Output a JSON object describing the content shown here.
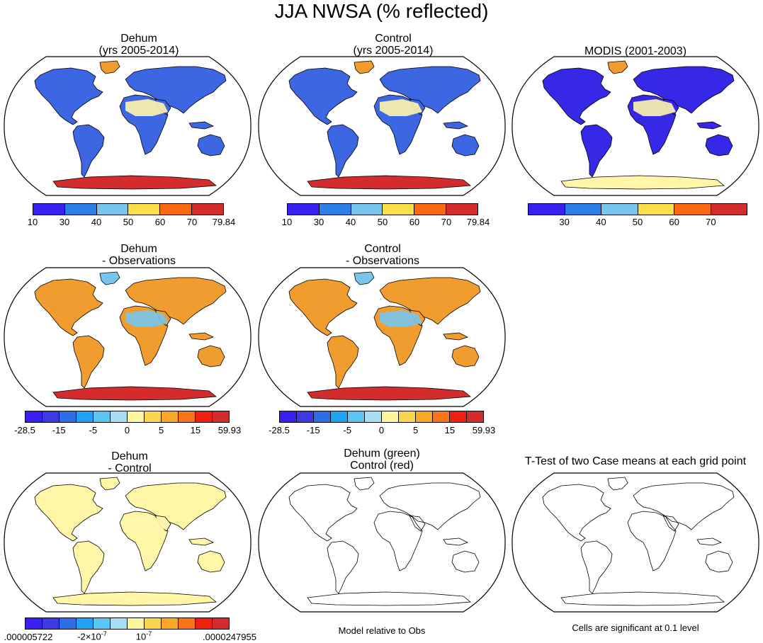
{
  "figure": {
    "title": "JJA NWSA (% reflected)"
  },
  "colors": {
    "abs_scale": [
      "#3a20ee",
      "#2d7ee6",
      "#78c6ee",
      "#f9e04a",
      "#fb6a12",
      "#d42c2c"
    ],
    "diff_scale": [
      "#3a20ee",
      "#3a3ae0",
      "#2d6ee6",
      "#1fa2f2",
      "#5cc6f2",
      "#a8def4",
      "#fff6a0",
      "#fad650",
      "#f9a826",
      "#f7741a",
      "#f02010",
      "#d42c2c"
    ],
    "land_orange": "#f19c2e",
    "land_yellow": "#fff6a8",
    "land_blue": "#3528e6",
    "land_midblue": "#3d66e2",
    "antarctica_red": "#d42c2c"
  },
  "panels": [
    {
      "id": "dehum",
      "title1": "Dehum",
      "title2": "(yrs 2005-2014)"
    },
    {
      "id": "control",
      "title1": "Control",
      "title2": "(yrs 2005-2014)"
    },
    {
      "id": "modis",
      "title1": "MODIS (2001-2003)",
      "title2": ""
    },
    {
      "id": "dehum-obs",
      "title1": "Dehum",
      "title2": "- Observations"
    },
    {
      "id": "control-obs",
      "title1": "Control",
      "title2": "- Observations"
    },
    {
      "id": "dehum-control",
      "title1": "Dehum",
      "title2": "- Control"
    },
    {
      "id": "green-red",
      "title1": "Dehum (green)",
      "title2": "Control (red)"
    },
    {
      "id": "ttest",
      "title1": "T-Test of two Case means at each grid point",
      "title2": ""
    }
  ],
  "legends": {
    "abs_full": [
      "10",
      "30",
      "40",
      "50",
      "60",
      "70",
      "79.84"
    ],
    "abs_modis": [
      "30",
      "40",
      "50",
      "60",
      "70"
    ],
    "diff": [
      "-28.5",
      "-15",
      "-5",
      "0",
      "5",
      "15",
      "59.93"
    ],
    "dc_min": ".000005722",
    "dc_mid_neg_base": "-2×10",
    "dc_mid_neg_exp": "-7",
    "dc_mid_pos_base": "10",
    "dc_mid_pos_exp": "-7",
    "dc_max": ".0000247955"
  },
  "notes": {
    "model_relative": "Model relative to Obs",
    "significance": "Cells are significant at 0.1 level"
  }
}
